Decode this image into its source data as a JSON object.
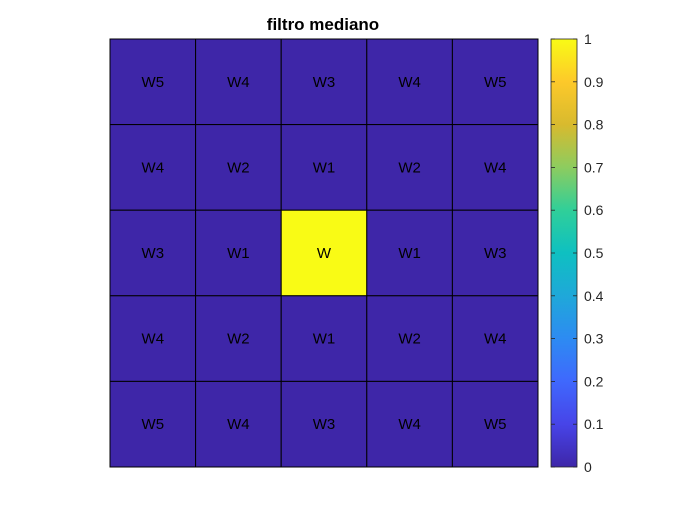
{
  "chart_data": {
    "type": "heatmap",
    "title": "filtro mediano",
    "xlabel": "",
    "ylabel": "",
    "grid": true,
    "rows": 5,
    "cols": 5,
    "values": [
      [
        0,
        0,
        0,
        0,
        0
      ],
      [
        0,
        0,
        0,
        0,
        0
      ],
      [
        0,
        0,
        1,
        0,
        0
      ],
      [
        0,
        0,
        0,
        0,
        0
      ],
      [
        0,
        0,
        0,
        0,
        0
      ]
    ],
    "labels": [
      [
        "W5",
        "W4",
        "W3",
        "W4",
        "W5"
      ],
      [
        "W4",
        "W2",
        "W1",
        "W2",
        "W4"
      ],
      [
        "W3",
        "W1",
        "W",
        "W1",
        "W3"
      ],
      [
        "W4",
        "W2",
        "W1",
        "W2",
        "W4"
      ],
      [
        "W5",
        "W4",
        "W3",
        "W4",
        "W5"
      ]
    ],
    "colormap": "parula",
    "colorbar": {
      "location": "right",
      "clim": [
        0,
        1
      ],
      "ticks": [
        0,
        0.1,
        0.2,
        0.3,
        0.4,
        0.5,
        0.6,
        0.7,
        0.8,
        0.9,
        1
      ],
      "tick_labels": [
        "0",
        "0.1",
        "0.2",
        "0.3",
        "0.4",
        "0.5",
        "0.6",
        "0.7",
        "0.8",
        "0.9",
        "1"
      ]
    },
    "colors": {
      "low": "#3e26a8",
      "high": "#f9fb15",
      "gridline": "#000000"
    }
  }
}
